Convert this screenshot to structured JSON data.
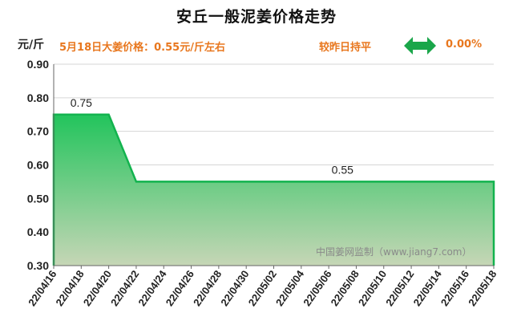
{
  "header": {
    "title": "安丘一般泥姜价格走势",
    "unit": "元/斤",
    "price_text": "5月18日大姜价格：0.55元/斤左右",
    "compare_label": "较昨日持平",
    "compare_value": "0.00%",
    "compare_icon": "double-arrow-icon",
    "accent_color": "#e8771e",
    "arrow_color": "#1aa64a"
  },
  "watermark": "中国姜网监制（www.jiang7.com）",
  "chart_data": {
    "type": "area",
    "title": "安丘一般泥姜价格走势",
    "ylabel": "元/斤",
    "ylim": [
      0.3,
      0.9
    ],
    "yticks": [
      "0.30",
      "0.40",
      "0.50",
      "0.60",
      "0.70",
      "0.80",
      "0.90"
    ],
    "x_dates": [
      "22/04/16",
      "22/04/17",
      "22/04/18",
      "22/04/19",
      "22/04/20",
      "22/04/21",
      "22/04/22",
      "22/04/23",
      "22/04/24",
      "22/04/25",
      "22/04/26",
      "22/04/27",
      "22/04/28",
      "22/04/29",
      "22/04/30",
      "22/05/01",
      "22/05/02",
      "22/05/03",
      "22/05/04",
      "22/05/05",
      "22/05/06",
      "22/05/07",
      "22/05/08",
      "22/05/09",
      "22/05/10",
      "22/05/11",
      "22/05/12",
      "22/05/13",
      "22/05/14",
      "22/05/15",
      "22/05/16",
      "22/05/17",
      "22/05/18"
    ],
    "xtick_labels": [
      "22/04/16",
      "22/04/18",
      "22/04/20",
      "22/04/22",
      "22/04/24",
      "22/04/26",
      "22/04/28",
      "22/04/30",
      "22/05/02",
      "22/05/04",
      "22/05/06",
      "22/05/08",
      "22/05/10",
      "22/05/12",
      "22/05/14",
      "22/05/16",
      "22/05/18"
    ],
    "values": [
      0.75,
      0.75,
      0.75,
      0.75,
      0.75,
      0.65,
      0.55,
      0.55,
      0.55,
      0.55,
      0.55,
      0.55,
      0.55,
      0.55,
      0.55,
      0.55,
      0.55,
      0.55,
      0.55,
      0.55,
      0.55,
      0.55,
      0.55,
      0.55,
      0.55,
      0.55,
      0.55,
      0.55,
      0.55,
      0.55,
      0.55,
      0.55,
      0.55
    ],
    "data_labels": [
      {
        "date": "22/04/18",
        "text": "0.75"
      },
      {
        "date": "22/05/07",
        "text": "0.55"
      }
    ],
    "line_color": "#12b34e",
    "fill_top_color": "#22c45c",
    "fill_bottom_color": "#c6d6b6",
    "grid": true
  }
}
